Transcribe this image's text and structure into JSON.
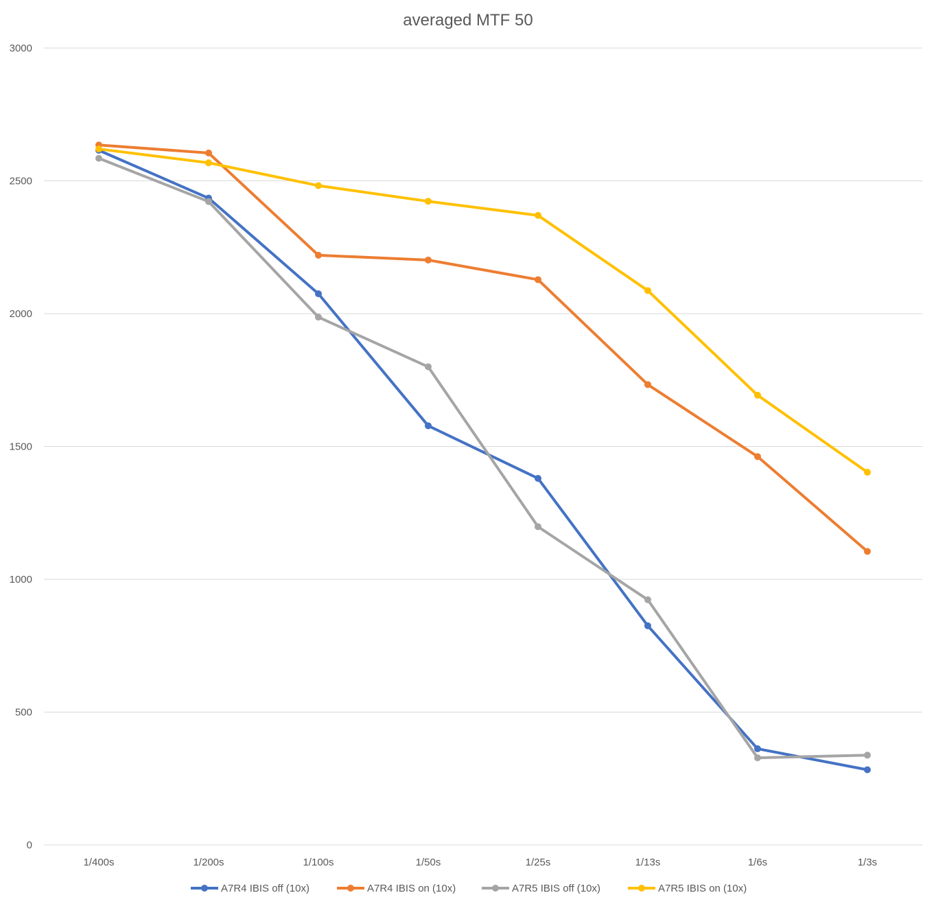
{
  "chart_data": {
    "type": "line",
    "title": "averaged MTF 50",
    "xlabel": "",
    "ylabel": "",
    "categories": [
      "1/400s",
      "1/200s",
      "1/100s",
      "1/50s",
      "1/25s",
      "1/13s",
      "1/6s",
      "1/3s"
    ],
    "ylim": [
      0,
      3000
    ],
    "yticks": [
      0,
      500,
      1000,
      1500,
      2000,
      2500,
      3000
    ],
    "grid": true,
    "legend_position": "bottom",
    "series": [
      {
        "name": "A7R4 IBIS off (10x)",
        "color": "#4472c4",
        "values": [
          2615,
          2435,
          2075,
          1578,
          1380,
          825,
          362,
          283
        ]
      },
      {
        "name": "A7R4 IBIS on (10x)",
        "color": "#ed7d31",
        "values": [
          2635,
          2605,
          2220,
          2202,
          2128,
          1733,
          1462,
          1105
        ]
      },
      {
        "name": "A7R5 IBIS off (10x)",
        "color": "#a5a5a5",
        "values": [
          2585,
          2422,
          1987,
          1800,
          1198,
          923,
          328,
          338
        ]
      },
      {
        "name": "A7R5 IBIS on (10x)",
        "color": "#ffc000",
        "values": [
          2620,
          2568,
          2482,
          2423,
          2370,
          2087,
          1693,
          1403
        ]
      }
    ]
  }
}
